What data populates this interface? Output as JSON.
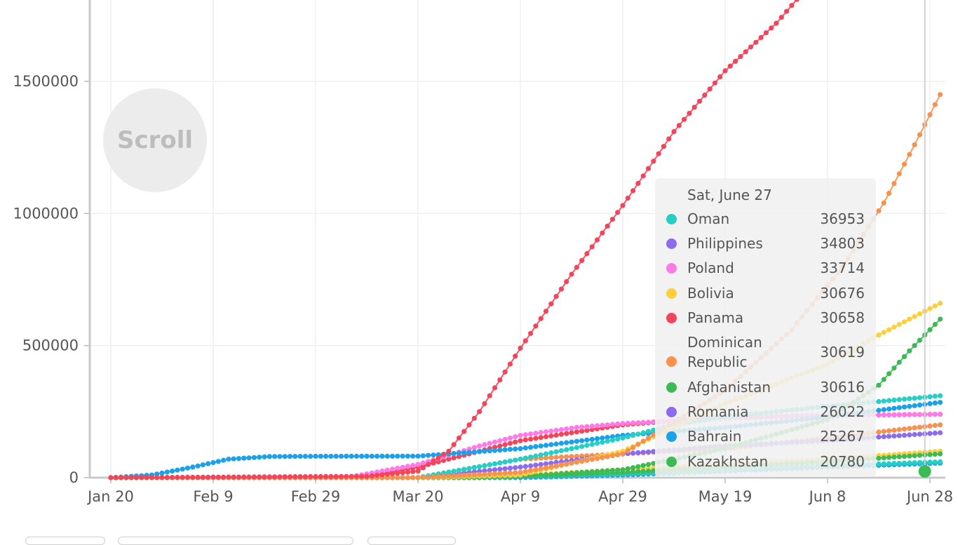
{
  "scroll_label": "Scroll",
  "chart_data": {
    "type": "line",
    "title": "",
    "xlabel": "",
    "ylabel": "",
    "x_tick_labels": [
      "Jan 20",
      "Feb 9",
      "Feb 29",
      "Mar 20",
      "Apr 9",
      "Apr 29",
      "May 19",
      "Jun 8",
      "Jun 28"
    ],
    "y_tick_labels": [
      "0",
      "500000",
      "1000000",
      "1500000"
    ],
    "ylim": [
      0,
      1500000
    ],
    "xlim": [
      "2020-01-19",
      "2020-06-30"
    ],
    "grid": true,
    "legend": "tooltip",
    "series": [
      {
        "color": "#f44459",
        "x": [
          "2020-01-20",
          "2020-03-10",
          "2020-03-20",
          "2020-03-26",
          "2020-04-01",
          "2020-04-09",
          "2020-04-19",
          "2020-04-29",
          "2020-05-09",
          "2020-05-19",
          "2020-05-29",
          "2020-06-02"
        ],
        "values": [
          0,
          5000,
          25000,
          100000,
          250000,
          490000,
          770000,
          1030000,
          1310000,
          1540000,
          1720000,
          1810000
        ]
      },
      {
        "color": "#f7914d",
        "x": [
          "2020-03-20",
          "2020-04-09",
          "2020-04-29",
          "2020-05-19",
          "2020-06-01",
          "2020-06-11",
          "2020-06-19",
          "2020-06-25",
          "2020-06-30"
        ],
        "values": [
          0,
          20000,
          90000,
          330000,
          560000,
          800000,
          1040000,
          1260000,
          1450000
        ]
      },
      {
        "color": "#fdd03b",
        "x": [
          "2020-03-20",
          "2020-04-09",
          "2020-04-29",
          "2020-05-19",
          "2020-06-08",
          "2020-06-18",
          "2020-06-30"
        ],
        "values": [
          0,
          10000,
          100000,
          280000,
          430000,
          540000,
          660000
        ]
      },
      {
        "color": "#3cba54",
        "x": [
          "2020-03-20",
          "2020-04-09",
          "2020-04-29",
          "2020-05-19",
          "2020-06-08",
          "2020-06-18",
          "2020-06-24",
          "2020-06-30"
        ],
        "values": [
          0,
          5000,
          30000,
          110000,
          220000,
          350000,
          480000,
          600000
        ]
      },
      {
        "color": "#24cfc5",
        "x": [
          "2020-03-20",
          "2020-04-09",
          "2020-04-29",
          "2020-05-09",
          "2020-05-19",
          "2020-06-08",
          "2020-06-30"
        ],
        "values": [
          0,
          70000,
          150000,
          200000,
          230000,
          270000,
          310000
        ]
      },
      {
        "color": "#19a1ea",
        "x": [
          "2020-01-20",
          "2020-01-28",
          "2020-02-05",
          "2020-02-12",
          "2020-02-20",
          "2020-03-01",
          "2020-03-20",
          "2020-04-09",
          "2020-04-29",
          "2020-05-19",
          "2020-06-08",
          "2020-06-30"
        ],
        "values": [
          0,
          10000,
          40000,
          70000,
          80000,
          81000,
          81500,
          110000,
          160000,
          190000,
          230000,
          285000
        ]
      },
      {
        "color": "#ff7ae6",
        "x": [
          "2020-03-06",
          "2020-03-20",
          "2020-04-01",
          "2020-04-09",
          "2020-04-20",
          "2020-04-29",
          "2020-05-19",
          "2020-06-08",
          "2020-06-30"
        ],
        "values": [
          0,
          50000,
          120000,
          160000,
          190000,
          205000,
          225000,
          235000,
          240000
        ]
      },
      {
        "color": "#f44459",
        "x": [
          "2020-03-09",
          "2020-03-20",
          "2020-04-09",
          "2020-04-29",
          "2020-05-19",
          "2020-06-30"
        ],
        "values": [
          0,
          40000,
          140000,
          200000,
          230000,
          240000
        ]
      },
      {
        "color": "#8b6cef",
        "x": [
          "2020-03-20",
          "2020-04-09",
          "2020-04-29",
          "2020-05-19",
          "2020-06-08",
          "2020-06-30"
        ],
        "values": [
          0,
          40000,
          90000,
          120000,
          140000,
          170000
        ]
      },
      {
        "color": "#f7914d",
        "x": [
          "2020-03-20",
          "2020-04-09",
          "2020-04-29",
          "2020-05-19",
          "2020-06-08",
          "2020-06-30"
        ],
        "values": [
          0,
          70000,
          90000,
          110000,
          150000,
          200000
        ]
      },
      {
        "color": "#3cba54",
        "x": [
          "2020-04-01",
          "2020-04-29",
          "2020-05-19",
          "2020-06-08",
          "2020-06-30"
        ],
        "values": [
          0,
          20000,
          40000,
          60000,
          90000
        ]
      },
      {
        "color": "#fdd03b",
        "x": [
          "2020-04-01",
          "2020-04-29",
          "2020-05-19",
          "2020-06-08",
          "2020-06-30"
        ],
        "values": [
          0,
          30000,
          50000,
          70000,
          100000
        ]
      },
      {
        "color": "#24cfc5",
        "x": [
          "2020-04-01",
          "2020-04-29",
          "2020-05-19",
          "2020-06-08",
          "2020-06-30"
        ],
        "values": [
          0,
          15000,
          30000,
          45000,
          60000
        ]
      },
      {
        "color": "#19a1ea",
        "x": [
          "2020-04-09",
          "2020-04-29",
          "2020-05-19",
          "2020-06-08",
          "2020-06-30"
        ],
        "values": [
          0,
          10000,
          25000,
          40000,
          55000
        ]
      }
    ]
  },
  "tooltip": {
    "date": "Sat, June 27",
    "rows": [
      {
        "name": "Oman",
        "value": "36953",
        "color": "#24cfc5"
      },
      {
        "name": "Philippines",
        "value": "34803",
        "color": "#8b6cef"
      },
      {
        "name": "Poland",
        "value": "33714",
        "color": "#ff7ae6"
      },
      {
        "name": "Bolivia",
        "value": "30676",
        "color": "#fdd03b"
      },
      {
        "name": "Panama",
        "value": "30658",
        "color": "#f44459"
      },
      {
        "name": "Dominican",
        "name2": "Republic",
        "value": "30619",
        "color": "#f7914d"
      },
      {
        "name": "Afghanistan",
        "value": "30616",
        "color": "#3cba54"
      },
      {
        "name": "Romania",
        "value": "26022",
        "color": "#8b6cef"
      },
      {
        "name": "Bahrain",
        "value": "25267",
        "color": "#19a1ea"
      },
      {
        "name": "Kazakhstan",
        "value": "20780",
        "color": "#3cba54"
      }
    ]
  }
}
